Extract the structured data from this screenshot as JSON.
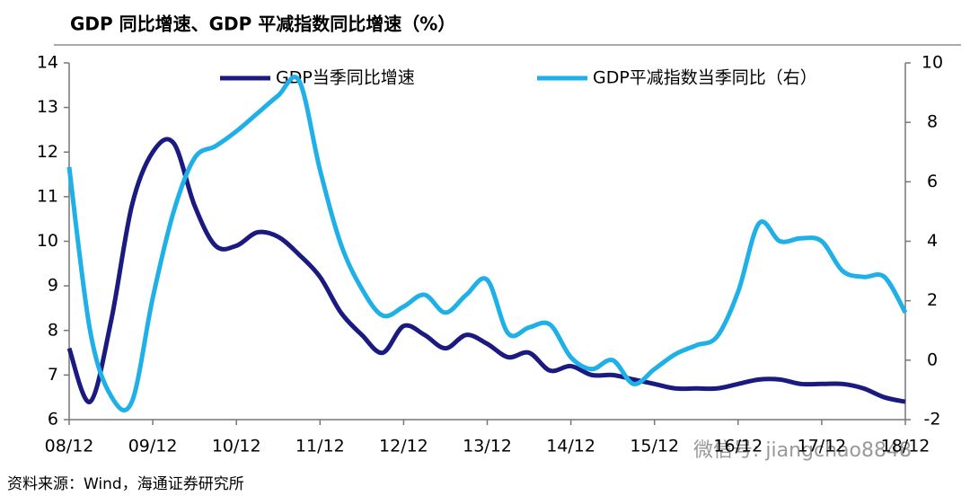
{
  "chart_data": {
    "type": "line",
    "title": "GDP 同比增速、GDP 平减指数同比增速（%）",
    "source": "资料来源：Wind，海通证券研究所",
    "watermark": "微信号: jiangchao8848",
    "categories": [
      "08/12",
      null,
      null,
      null,
      "09/12",
      null,
      null,
      null,
      "10/12",
      null,
      null,
      null,
      "11/12",
      null,
      null,
      null,
      "12/12",
      null,
      null,
      null,
      "13/12",
      null,
      null,
      null,
      "14/12",
      null,
      null,
      null,
      "15/12",
      null,
      null,
      null,
      "16/12",
      null,
      null,
      null,
      "17/12",
      null,
      null,
      null,
      "18/12"
    ],
    "series": [
      {
        "name": "GDP当季同比增速",
        "color": "#1a1a80",
        "values": [
          7.6,
          6.4,
          8.2,
          10.8,
          12.0,
          12.2,
          10.8,
          9.9,
          9.9,
          10.2,
          10.1,
          9.7,
          9.2,
          8.4,
          7.9,
          7.5,
          8.1,
          7.9,
          7.6,
          7.9,
          7.7,
          7.4,
          7.5,
          7.1,
          7.2,
          7.0,
          7.0,
          6.9,
          6.8,
          6.7,
          6.7,
          6.7,
          6.8,
          6.9,
          6.9,
          6.8,
          6.8,
          6.8,
          6.7,
          6.5,
          6.4
        ]
      },
      {
        "name": "GDP平减指数当季同比（右）",
        "color": "#1fb0e8",
        "axis": "y2",
        "values": [
          6.5,
          1.0,
          -1.2,
          -1.4,
          2.1,
          5.0,
          6.8,
          7.2,
          7.7,
          8.3,
          8.9,
          9.4,
          6.4,
          3.9,
          2.4,
          1.5,
          1.8,
          2.2,
          1.6,
          2.2,
          2.7,
          0.9,
          1.1,
          1.2,
          0.1,
          -0.3,
          0.0,
          -0.8,
          -0.3,
          0.2,
          0.5,
          0.8,
          2.3,
          4.6,
          4.0,
          4.1,
          4.0,
          3.0,
          2.8,
          2.8,
          1.6
        ]
      }
    ],
    "ylim": [
      6,
      14
    ],
    "yticks": [
      6,
      7,
      8,
      9,
      10,
      11,
      12,
      13,
      14
    ],
    "y2lim": [
      -2,
      10
    ],
    "y2ticks": [
      -2,
      0,
      2,
      4,
      6,
      8,
      10
    ],
    "legend": "top"
  }
}
